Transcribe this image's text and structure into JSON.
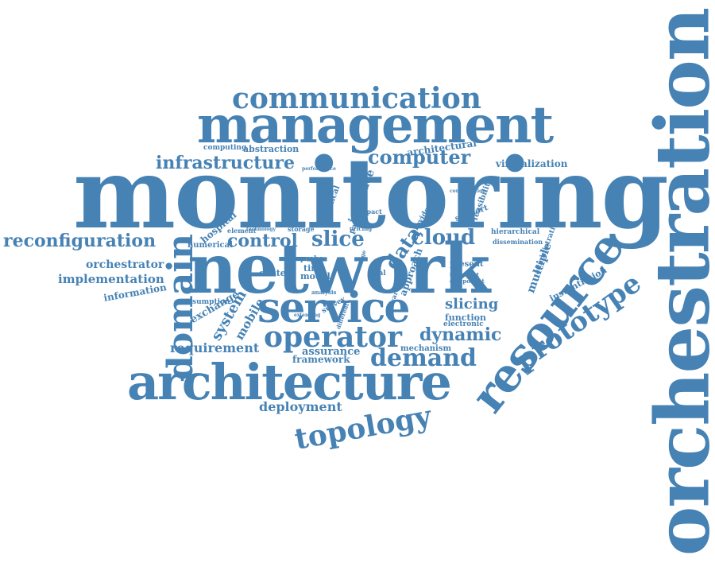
{
  "color": "#4682b4",
  "words": {
    "monitoring": "monitoring",
    "network": "network",
    "orchestration": "orchestration",
    "management": "management",
    "architecture": "architecture",
    "service": "service",
    "resource": "resource",
    "communication": "communication",
    "domain": "domain",
    "operator": "operator",
    "topology": "topology",
    "prototype": "prototype",
    "demand": "demand",
    "infrastructure": "infrastructure",
    "computer": "computer",
    "reconfiguration": "reconfiguration",
    "slice": "slice",
    "cloud": "cloud",
    "control": "control",
    "dynamic": "dynamic",
    "data": "data",
    "implementation": "implementation",
    "orchestrator": "orchestrator",
    "requirement": "requirement",
    "slicing": "slicing",
    "deployment": "deployment",
    "system": "system",
    "mobile": "mobile",
    "multiple": "multiple",
    "virtualization": "virtualization",
    "architectural": "architectural",
    "assurance": "assurance",
    "framework": "framework",
    "mechanism": "mechanism",
    "function": "function",
    "electronic": "electronic",
    "information": "information",
    "exchange": "exchange",
    "consumption": "consumption",
    "hospital": "hospital",
    "element": "element",
    "numerical": "numerical",
    "center": "center",
    "model": "model",
    "time": "time",
    "probe": "probe",
    "storage": "storage",
    "computing": "computing",
    "abstraction": "abstraction",
    "interface": "interface",
    "graphical": "graphical",
    "approach": "approach",
    "present": "present",
    "instantiation": "instantiation",
    "administrative": "administrative",
    "hierarchical": "hierarchical",
    "dissemination": "dissemination",
    "feasibility": "feasibility",
    "support": "support",
    "impact": "impact",
    "paper": "paper",
    "provider": "provider",
    "pricing": "pricing",
    "real": "real",
    "analysis": "analysis",
    "survey": "survey",
    "software": "software",
    "different": "different",
    "performance": "performance",
    "component": "component",
    "transport": "transport",
    "technology": "technology",
    "edge": "edge",
    "configuration": "configuration",
    "extending": "extending"
  }
}
